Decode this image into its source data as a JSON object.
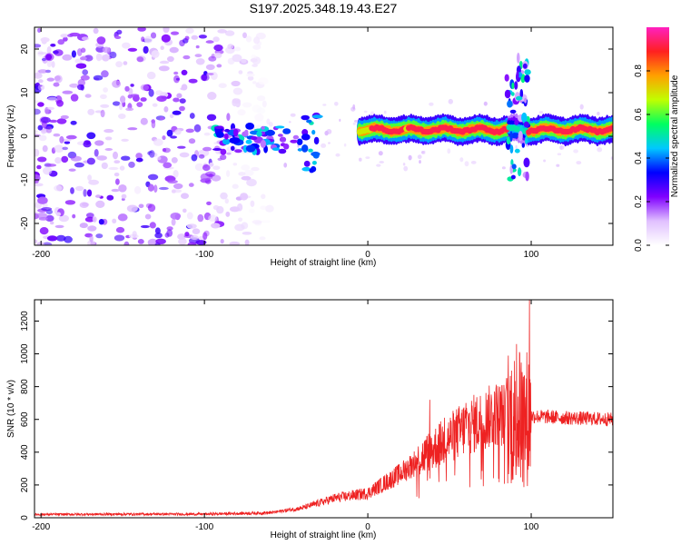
{
  "chart_data": [
    {
      "type": "heatmap",
      "title": "S197.2025.348.19.43.E27",
      "xlabel": "Height of straight line (km)",
      "ylabel": "Frequency (Hz)",
      "xlim": [
        -204,
        150
      ],
      "ylim": [
        -25,
        25
      ],
      "xticks": [
        -200,
        -100,
        0,
        100
      ],
      "xtick_labels": [
        "-200",
        "-100",
        "0",
        "100"
      ],
      "yticks": [
        -20,
        -10,
        0,
        10,
        20
      ],
      "ytick_labels": [
        "-20",
        "-10",
        "0",
        "10",
        "20"
      ],
      "colorbar": {
        "label": "Normalized spectral amplitude",
        "range": [
          0,
          1
        ],
        "ticks": [
          0.0,
          0.2,
          0.4,
          0.6,
          0.8
        ],
        "tick_labels": [
          "0.0",
          "0.2",
          "0.4",
          "0.6",
          "0.8"
        ],
        "colors": [
          "#ffffff",
          "#e0c0ff",
          "#8000ff",
          "#0000ff",
          "#00c8ff",
          "#00ff60",
          "#c0ff00",
          "#ffa000",
          "#ff2020",
          "#ff20c0"
        ]
      },
      "features": [
        {
          "name": "noise",
          "x_range": [
            -204,
            -70
          ],
          "f_range": [
            -25,
            25
          ],
          "amplitude": 0.1
        },
        {
          "name": "onset",
          "x_range": [
            -95,
            -30
          ],
          "f_center": 0,
          "amplitude": 0.3
        },
        {
          "name": "main-band",
          "x_range": [
            -5,
            150
          ],
          "f_center": 1.5,
          "amplitude": 0.9
        },
        {
          "name": "burst",
          "x_range": [
            85,
            98
          ],
          "f_range": [
            -10,
            18
          ],
          "amplitude": 0.5
        }
      ]
    },
    {
      "type": "line",
      "xlabel": "Height of straight line (km)",
      "ylabel": "SNR (10 * v/v)",
      "xlim": [
        -204,
        150
      ],
      "ylim": [
        0,
        1330
      ],
      "xticks": [
        -200,
        -100,
        0,
        100
      ],
      "xtick_labels": [
        "-200",
        "-100",
        "0",
        "100"
      ],
      "yticks": [
        0,
        200,
        400,
        600,
        800,
        1000,
        1200
      ],
      "ytick_labels": [
        "0",
        "200",
        "400",
        "600",
        "800",
        "1000",
        "1200"
      ],
      "color": "#ee2222",
      "trend": {
        "x": [
          -204,
          -150,
          -100,
          -60,
          -40,
          -20,
          0,
          20,
          40,
          60,
          80,
          90,
          100,
          120,
          150
        ],
        "y": [
          20,
          22,
          22,
          30,
          60,
          120,
          150,
          270,
          420,
          550,
          640,
          600,
          620,
          610,
          600
        ]
      },
      "peaks": [
        {
          "x": 38,
          "y": 720
        },
        {
          "x": 47,
          "y": 610
        },
        {
          "x": 60,
          "y": 700
        },
        {
          "x": 73,
          "y": 720
        },
        {
          "x": 85,
          "y": 850
        },
        {
          "x": 91,
          "y": 1060
        },
        {
          "x": 93,
          "y": 1000
        },
        {
          "x": 99,
          "y": 1330
        },
        {
          "x": 97,
          "y": 850
        }
      ]
    }
  ]
}
